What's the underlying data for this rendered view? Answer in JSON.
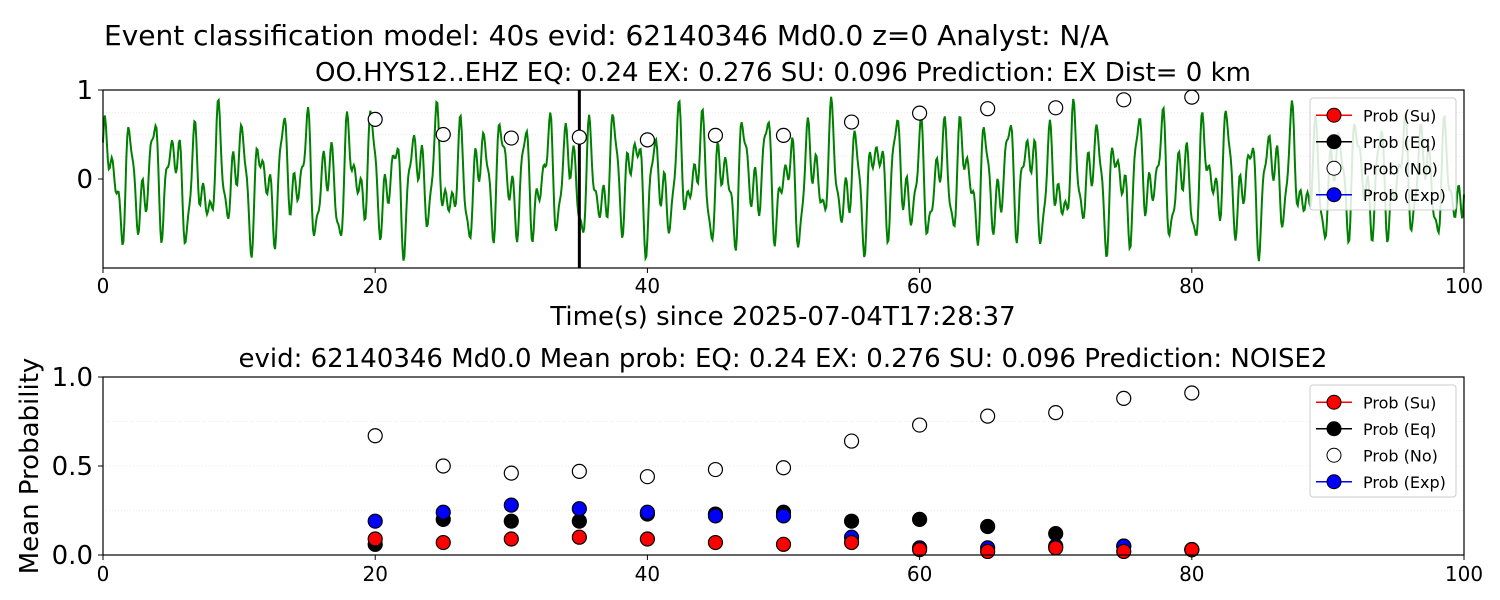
{
  "figure": {
    "suptitle": "Event classification model: 40s evid: 62140346 Md0.0 z=0 Analyst: N/A"
  },
  "chart_data": [
    {
      "type": "line",
      "title": "OO.HYS12..EHZ   EQ: 0.24  EX: 0.276  SU: 0.096   Prediction: EX    Dist= 0 km",
      "xlabel": "Time(s) since 2025-07-04T17:28:37",
      "ylabel": "",
      "xlim": [
        0,
        100
      ],
      "ylim": [
        -1,
        1
      ],
      "xticks": [
        "0",
        "20",
        "40",
        "60",
        "80",
        "100"
      ],
      "yticks": [
        "0",
        "1"
      ],
      "pick_time": 35,
      "waveform_color": "#008000",
      "series": [
        {
          "name": "Prob (No)",
          "color": "#ffffff",
          "x": [
            20,
            25,
            30,
            35,
            40,
            45,
            50,
            55,
            60,
            65,
            70,
            75,
            80
          ],
          "values": [
            0.67,
            0.5,
            0.46,
            0.47,
            0.44,
            0.49,
            0.49,
            0.64,
            0.74,
            0.79,
            0.8,
            0.89,
            0.92
          ]
        }
      ],
      "legend": {
        "position": "upper right",
        "entries": [
          {
            "label": "Prob (Su)",
            "color": "#ff0000",
            "style": "line"
          },
          {
            "label": "Prob (Eq)",
            "color": "#000000",
            "style": "line"
          },
          {
            "label": "Prob (No)",
            "color": "#ffffff",
            "style": "marker"
          },
          {
            "label": "Prob (Exp)",
            "color": "#0000ff",
            "style": "line"
          }
        ]
      }
    },
    {
      "type": "scatter",
      "title": "evid: 62140346  Md0.0   Mean prob:   EQ: 0.24  EX: 0.276  SU: 0.096   Prediction: NOISE2",
      "xlabel": "",
      "ylabel": "Mean Probability",
      "xlim": [
        0,
        100
      ],
      "ylim": [
        0,
        1
      ],
      "xticks": [
        "0",
        "20",
        "40",
        "60",
        "80",
        "100"
      ],
      "yticks": [
        "0.0",
        "0.5",
        "1.0"
      ],
      "x": [
        20,
        25,
        30,
        35,
        40,
        45,
        50,
        55,
        60,
        65,
        70,
        75,
        80
      ],
      "series": [
        {
          "name": "Prob (No)",
          "color": "#ffffff",
          "values": [
            0.67,
            0.5,
            0.46,
            0.47,
            0.44,
            0.48,
            0.49,
            0.64,
            0.73,
            0.78,
            0.8,
            0.88,
            0.91
          ]
        },
        {
          "name": "Prob (Eq)",
          "color": "#000000",
          "values": [
            0.06,
            0.2,
            0.19,
            0.19,
            0.23,
            0.23,
            0.24,
            0.19,
            0.2,
            0.16,
            0.12,
            0.05,
            0.03
          ]
        },
        {
          "name": "Prob (Exp)",
          "color": "#0000ff",
          "values": [
            0.19,
            0.24,
            0.28,
            0.26,
            0.24,
            0.22,
            0.22,
            0.1,
            0.04,
            0.04,
            0.05,
            0.05,
            0.03
          ]
        },
        {
          "name": "Prob (Su)",
          "color": "#ff0000",
          "values": [
            0.09,
            0.07,
            0.09,
            0.1,
            0.09,
            0.07,
            0.06,
            0.07,
            0.03,
            0.02,
            0.04,
            0.02,
            0.03
          ]
        }
      ],
      "legend": {
        "position": "upper right",
        "entries": [
          {
            "label": "Prob (Su)",
            "color": "#ff0000",
            "style": "line"
          },
          {
            "label": "Prob (Eq)",
            "color": "#000000",
            "style": "line"
          },
          {
            "label": "Prob (No)",
            "color": "#ffffff",
            "style": "marker"
          },
          {
            "label": "Prob (Exp)",
            "color": "#0000ff",
            "style": "line"
          }
        ]
      }
    }
  ]
}
